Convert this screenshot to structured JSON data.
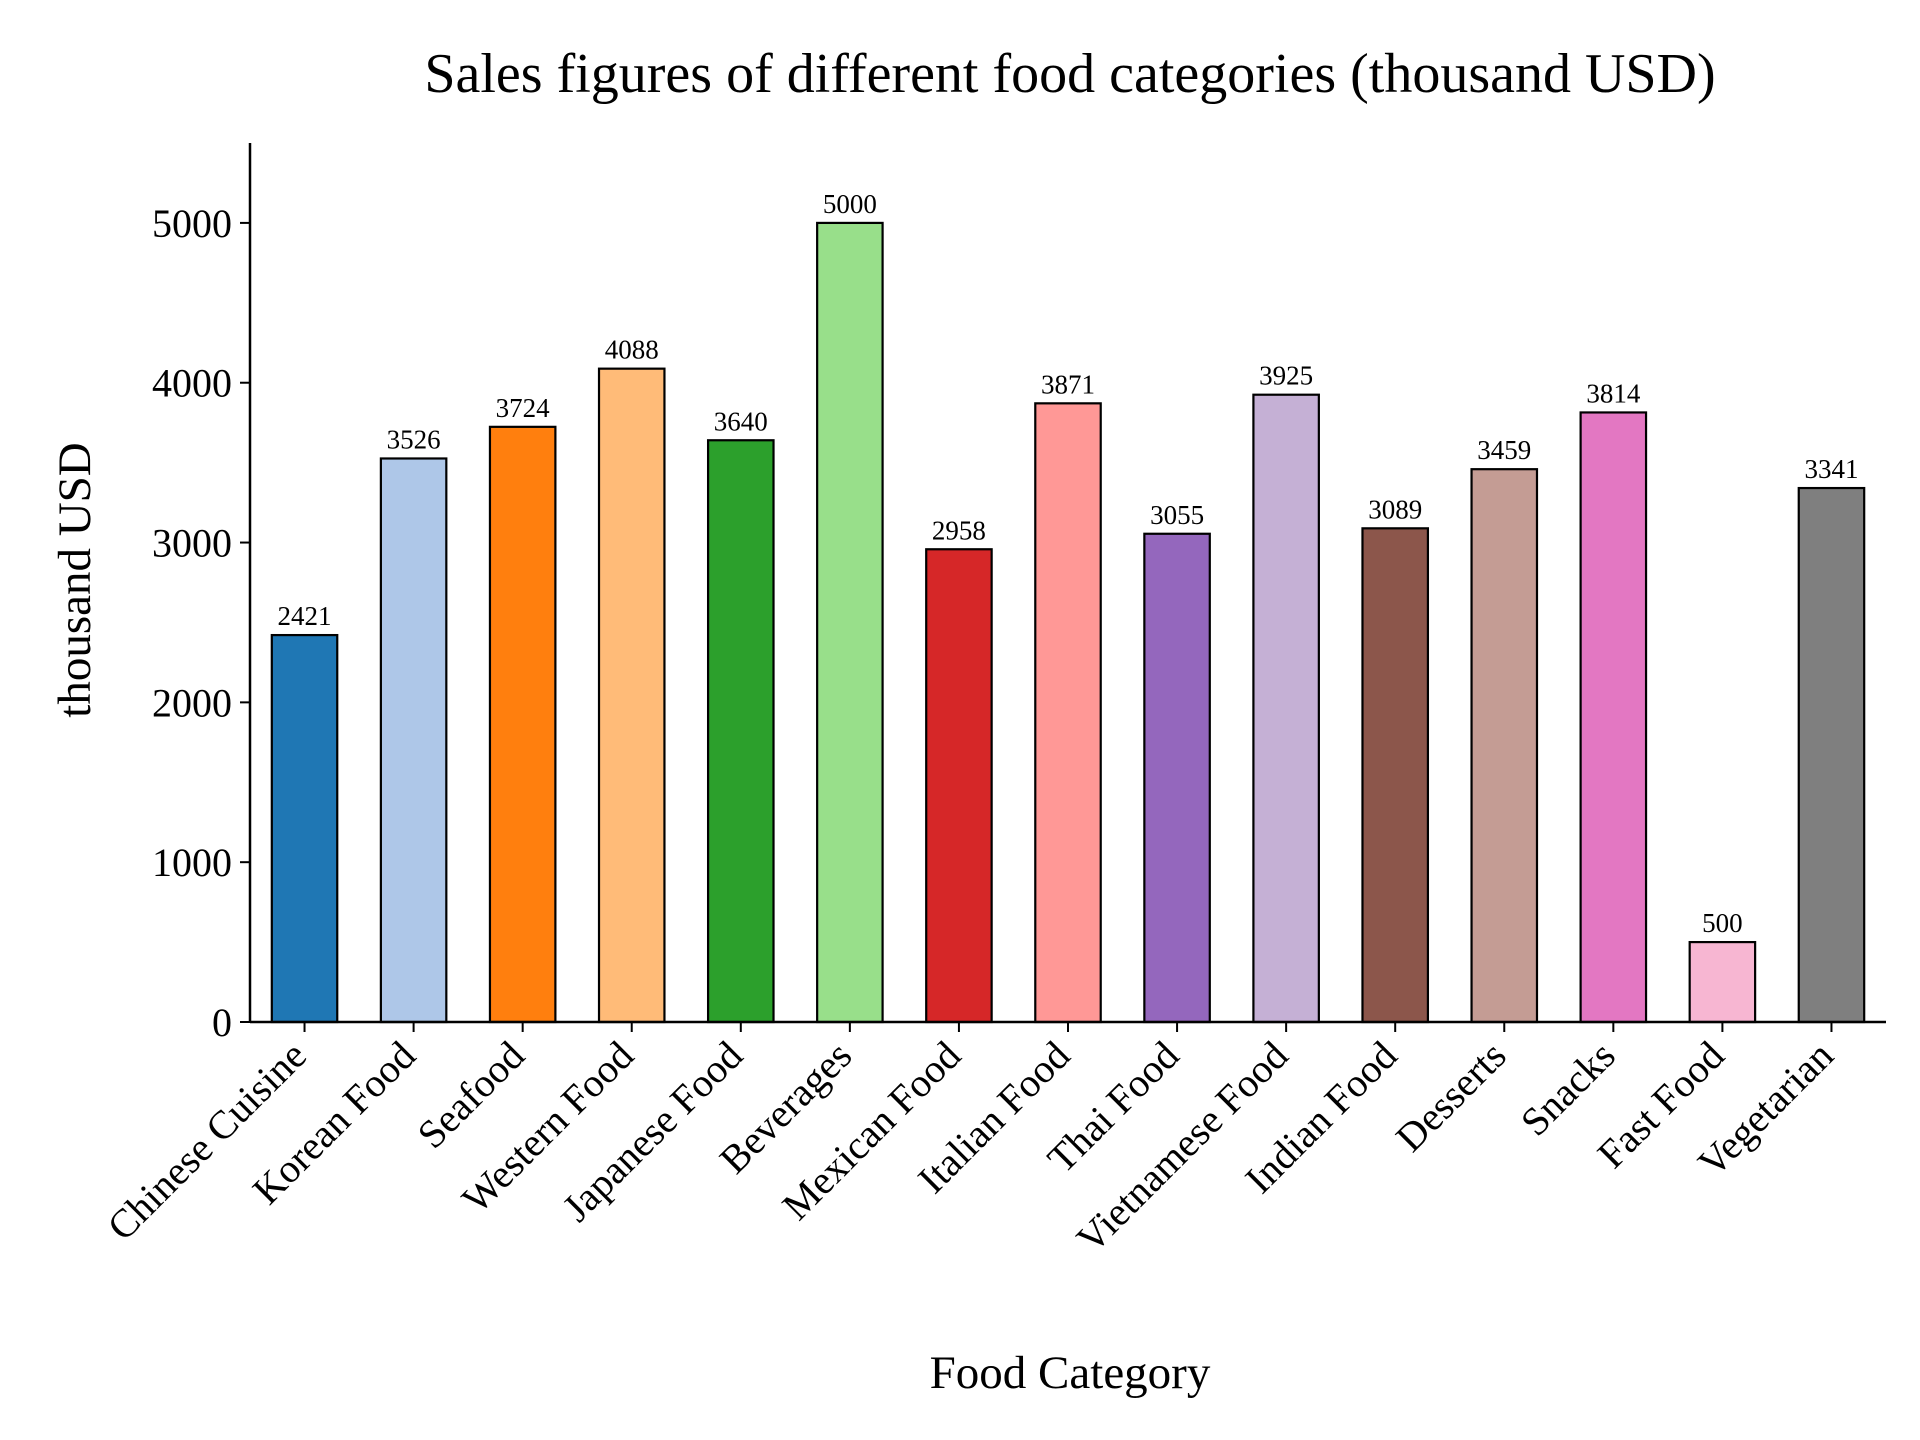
{
  "chart_data": {
    "type": "bar",
    "title": "Sales figures of different food categories (thousand USD)",
    "xlabel": "Food Category",
    "ylabel": "thousand USD",
    "categories": [
      "Chinese Cuisine",
      "Korean Food",
      "Seafood",
      "Western Food",
      "Japanese Food",
      "Beverages",
      "Mexican Food",
      "Italian Food",
      "Thai Food",
      "Vietnamese Food",
      "Indian Food",
      "Desserts",
      "Snacks",
      "Fast Food",
      "Vegetarian"
    ],
    "values": [
      2421,
      3526,
      3724,
      4088,
      3640,
      5000,
      2958,
      3871,
      3055,
      3925,
      3089,
      3459,
      3814,
      500,
      3341
    ],
    "data_labels": [
      "2421",
      "3526",
      "3724",
      "4088",
      "3640",
      "5000",
      "2958",
      "3871",
      "3055",
      "3925",
      "3089",
      "3459",
      "3814",
      "500",
      "3341"
    ],
    "colors": [
      "#1f77b4",
      "#aec7e8",
      "#ff7f0e",
      "#ffbb78",
      "#2ca02c",
      "#98df8a",
      "#d62728",
      "#ff9896",
      "#9467bd",
      "#c5b0d5",
      "#8c564b",
      "#c49c94",
      "#e377c2",
      "#f7b6d2",
      "#7f7f7f"
    ],
    "ylim": [
      0,
      5500
    ],
    "yticks": [
      0,
      1000,
      2000,
      3000,
      4000,
      5000
    ],
    "ytick_labels": [
      "0",
      "1000",
      "2000",
      "3000",
      "4000",
      "5000"
    ],
    "grid": false,
    "legend": "none"
  }
}
